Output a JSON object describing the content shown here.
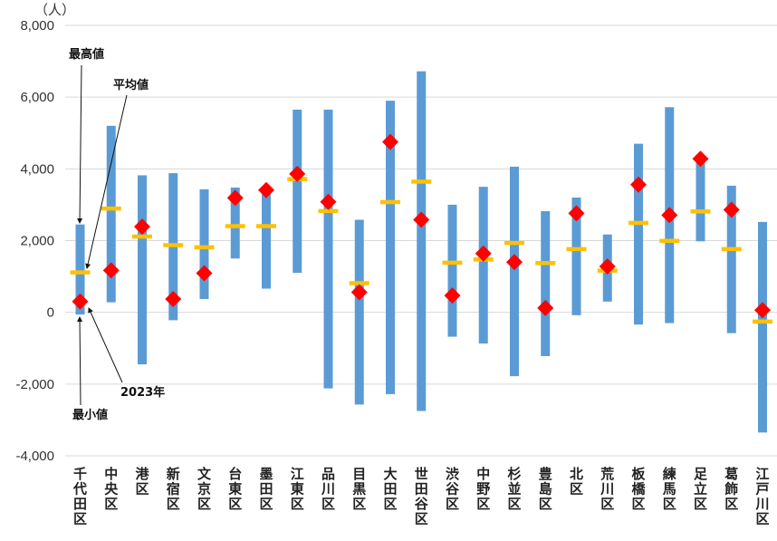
{
  "chart_data": {
    "type": "range-bar",
    "unit_label": "（人）",
    "ylim": [
      -4000,
      8000
    ],
    "yticks": [
      -4000,
      -2000,
      0,
      2000,
      4000,
      6000,
      8000
    ],
    "ytick_labels": [
      "-4,000",
      "-2,000",
      "0",
      "2,000",
      "4,000",
      "6,000",
      "8,000"
    ],
    "negative_tick_color": "#e00000",
    "grid": true,
    "categories": [
      "千代田区",
      "中央区",
      "港区",
      "新宿区",
      "文京区",
      "台東区",
      "墨田区",
      "江東区",
      "品川区",
      "目黒区",
      "大田区",
      "世田谷区",
      "渋谷区",
      "中野区",
      "杉並区",
      "豊島区",
      "北区",
      "荒川区",
      "板橋区",
      "練馬区",
      "足立区",
      "葛飾区",
      "江戸川区"
    ],
    "series": [
      {
        "name": "最高値",
        "values": [
          2450,
          5200,
          3820,
          3880,
          3430,
          3480,
          3450,
          5650,
          5650,
          2580,
          5900,
          6720,
          3000,
          3500,
          4060,
          2820,
          3200,
          2170,
          4700,
          5720,
          4330,
          3530,
          2520
        ]
      },
      {
        "name": "最小値",
        "values": [
          -60,
          280,
          -1450,
          -220,
          370,
          1500,
          660,
          1100,
          -2120,
          -2570,
          -2280,
          -2750,
          -680,
          -870,
          -1780,
          -1220,
          -80,
          300,
          -340,
          -300,
          1980,
          -580,
          -3350
        ]
      },
      {
        "name": "平均値",
        "values": [
          1120,
          2900,
          2120,
          1880,
          1820,
          2410,
          2410,
          3720,
          2830,
          820,
          3080,
          3650,
          1390,
          1480,
          1940,
          1380,
          1770,
          1170,
          2500,
          2000,
          2820,
          1770,
          -250
        ]
      },
      {
        "name": "2023年",
        "values": [
          300,
          1170,
          2390,
          370,
          1090,
          3190,
          3410,
          3860,
          3080,
          560,
          4750,
          2580,
          470,
          1640,
          1400,
          120,
          2760,
          1280,
          3560,
          2710,
          4280,
          2860,
          60
        ]
      }
    ],
    "colors": {
      "range_bar": "#5b9bd5",
      "average": "#ffc000",
      "current": "#ff0000",
      "grid": "#d9d9d9"
    },
    "annotations": [
      {
        "text": "最高値"
      },
      {
        "text": "平均値"
      },
      {
        "text": "2023年"
      },
      {
        "text": "最小値"
      }
    ]
  }
}
